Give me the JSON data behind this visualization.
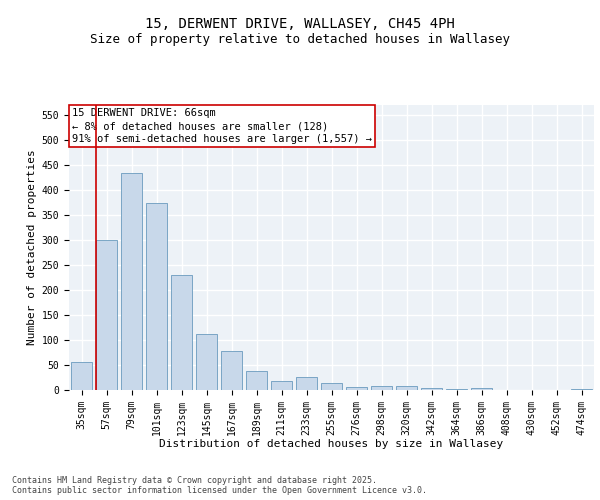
{
  "title_line1": "15, DERWENT DRIVE, WALLASEY, CH45 4PH",
  "title_line2": "Size of property relative to detached houses in Wallasey",
  "xlabel": "Distribution of detached houses by size in Wallasey",
  "ylabel": "Number of detached properties",
  "categories": [
    "35sqm",
    "57sqm",
    "79sqm",
    "101sqm",
    "123sqm",
    "145sqm",
    "167sqm",
    "189sqm",
    "211sqm",
    "233sqm",
    "255sqm",
    "276sqm",
    "298sqm",
    "320sqm",
    "342sqm",
    "364sqm",
    "386sqm",
    "408sqm",
    "430sqm",
    "452sqm",
    "474sqm"
  ],
  "values": [
    57,
    300,
    435,
    375,
    230,
    113,
    78,
    39,
    19,
    27,
    15,
    6,
    9,
    8,
    5,
    2,
    5,
    0,
    0,
    0,
    3
  ],
  "bar_color": "#c8d8ea",
  "bar_edge_color": "#6a9bbe",
  "bar_width": 0.85,
  "ylim": [
    0,
    570
  ],
  "yticks": [
    0,
    50,
    100,
    150,
    200,
    250,
    300,
    350,
    400,
    450,
    500,
    550
  ],
  "vline_color": "#cc0000",
  "vline_x": 0.58,
  "annotation_text": "15 DERWENT DRIVE: 66sqm\n← 8% of detached houses are smaller (128)\n91% of semi-detached houses are larger (1,557) →",
  "annotation_box_color": "#ffffff",
  "annotation_box_edge_color": "#cc0000",
  "footer_text": "Contains HM Land Registry data © Crown copyright and database right 2025.\nContains public sector information licensed under the Open Government Licence v3.0.",
  "background_color": "#edf2f7",
  "grid_color": "#ffffff",
  "title_fontsize": 10,
  "subtitle_fontsize": 9,
  "axis_label_fontsize": 8,
  "tick_fontsize": 7,
  "annotation_fontsize": 7.5,
  "footer_fontsize": 6
}
